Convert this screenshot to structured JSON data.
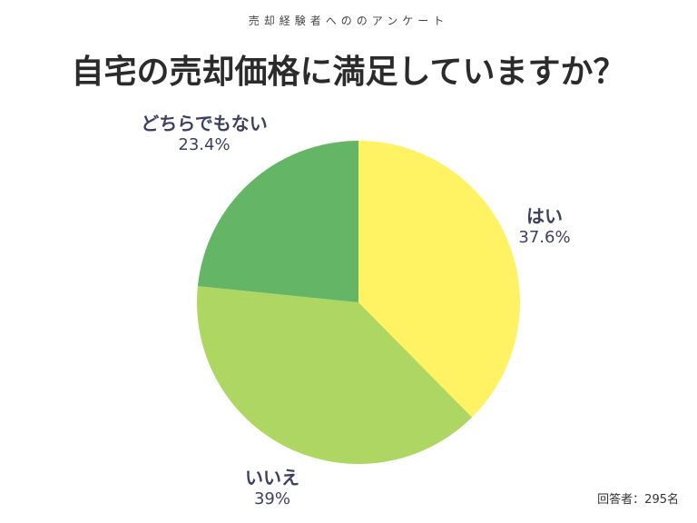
{
  "header": {
    "subtitle": "売却経験者へののアンケート",
    "title": "自宅の売却価格に満足していますか？"
  },
  "footer": {
    "respondents": "回答者：295名"
  },
  "colors": {
    "yes": "#fff364",
    "no": "#aed662",
    "neutral": "#64b566",
    "label_text": "#3e4060"
  },
  "labels": {
    "yes": {
      "name": "はい",
      "pct": "37.6%"
    },
    "no": {
      "name": "いいえ",
      "pct": "39%"
    },
    "neutral": {
      "name": "どちらでもない",
      "pct": "23.4%"
    }
  },
  "chart_data": {
    "type": "pie",
    "title": "自宅の売却価格に満足していますか？",
    "subtitle": "売却経験者へののアンケート",
    "categories": [
      "はい",
      "いいえ",
      "どちらでもない"
    ],
    "values": [
      37.6,
      39.0,
      23.4
    ],
    "unit": "%",
    "colors": [
      "#fff364",
      "#aed662",
      "#64b566"
    ],
    "start_angle": "12 o'clock, clockwise",
    "annotation": "回答者：295名",
    "legend": "none (labels placed beside slices)"
  }
}
